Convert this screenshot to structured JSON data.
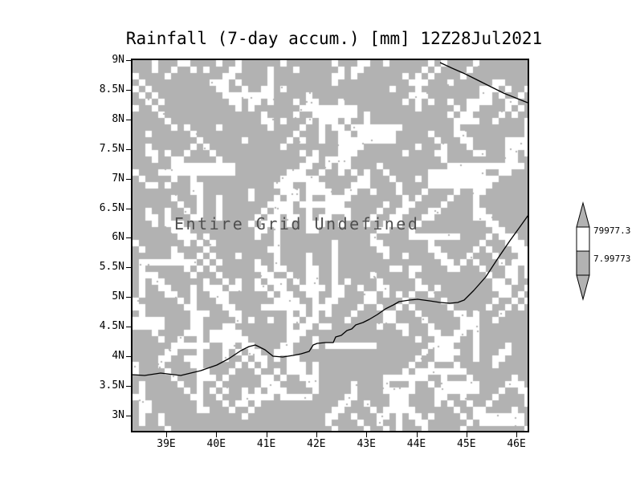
{
  "title": "Rainfall (7-day accum.) [mm] 12Z28Jul2021",
  "plot": {
    "status_text": "Entire Grid Undefined",
    "bg_color": "#b2b2b2",
    "speckle_color": "#ffffff",
    "coastline_color": "#000000"
  },
  "axes": {
    "y_ticks": [
      "9N",
      "8.5N",
      "8N",
      "7.5N",
      "7N",
      "6.5N",
      "6N",
      "5.5N",
      "5N",
      "4.5N",
      "4N",
      "3.5N",
      "3N"
    ],
    "x_ticks": [
      "39E",
      "40E",
      "41E",
      "42E",
      "43E",
      "44E",
      "45E",
      "46E"
    ]
  },
  "colorbar": {
    "labels": [
      "79977.3",
      "7.99773"
    ],
    "band_colors": [
      "#ffffff",
      "#b2b2b2"
    ]
  },
  "chart_data": {
    "type": "heatmap",
    "title": "Rainfall (7-day accum.) [mm] 12Z28Jul2021",
    "x_axis": {
      "ticks": [
        "39E",
        "40E",
        "41E",
        "42E",
        "43E",
        "44E",
        "45E",
        "46E"
      ],
      "range_deg_east": [
        38.4,
        46.3
      ]
    },
    "y_axis": {
      "ticks": [
        "9N",
        "8.5N",
        "8N",
        "7.5N",
        "7N",
        "6.5N",
        "6N",
        "5.5N",
        "5N",
        "4.5N",
        "4N",
        "3.5N",
        "3N"
      ],
      "range_deg_north": [
        2.8,
        9.05
      ]
    },
    "values": [],
    "data_status": "Entire Grid Undefined",
    "colorbar": {
      "position": "right",
      "labels": [
        "79977.3",
        "7.99773"
      ]
    },
    "overlay": "coastline outline",
    "grid": false,
    "fill_style": "gray background with white undefined-value speckle pattern"
  }
}
